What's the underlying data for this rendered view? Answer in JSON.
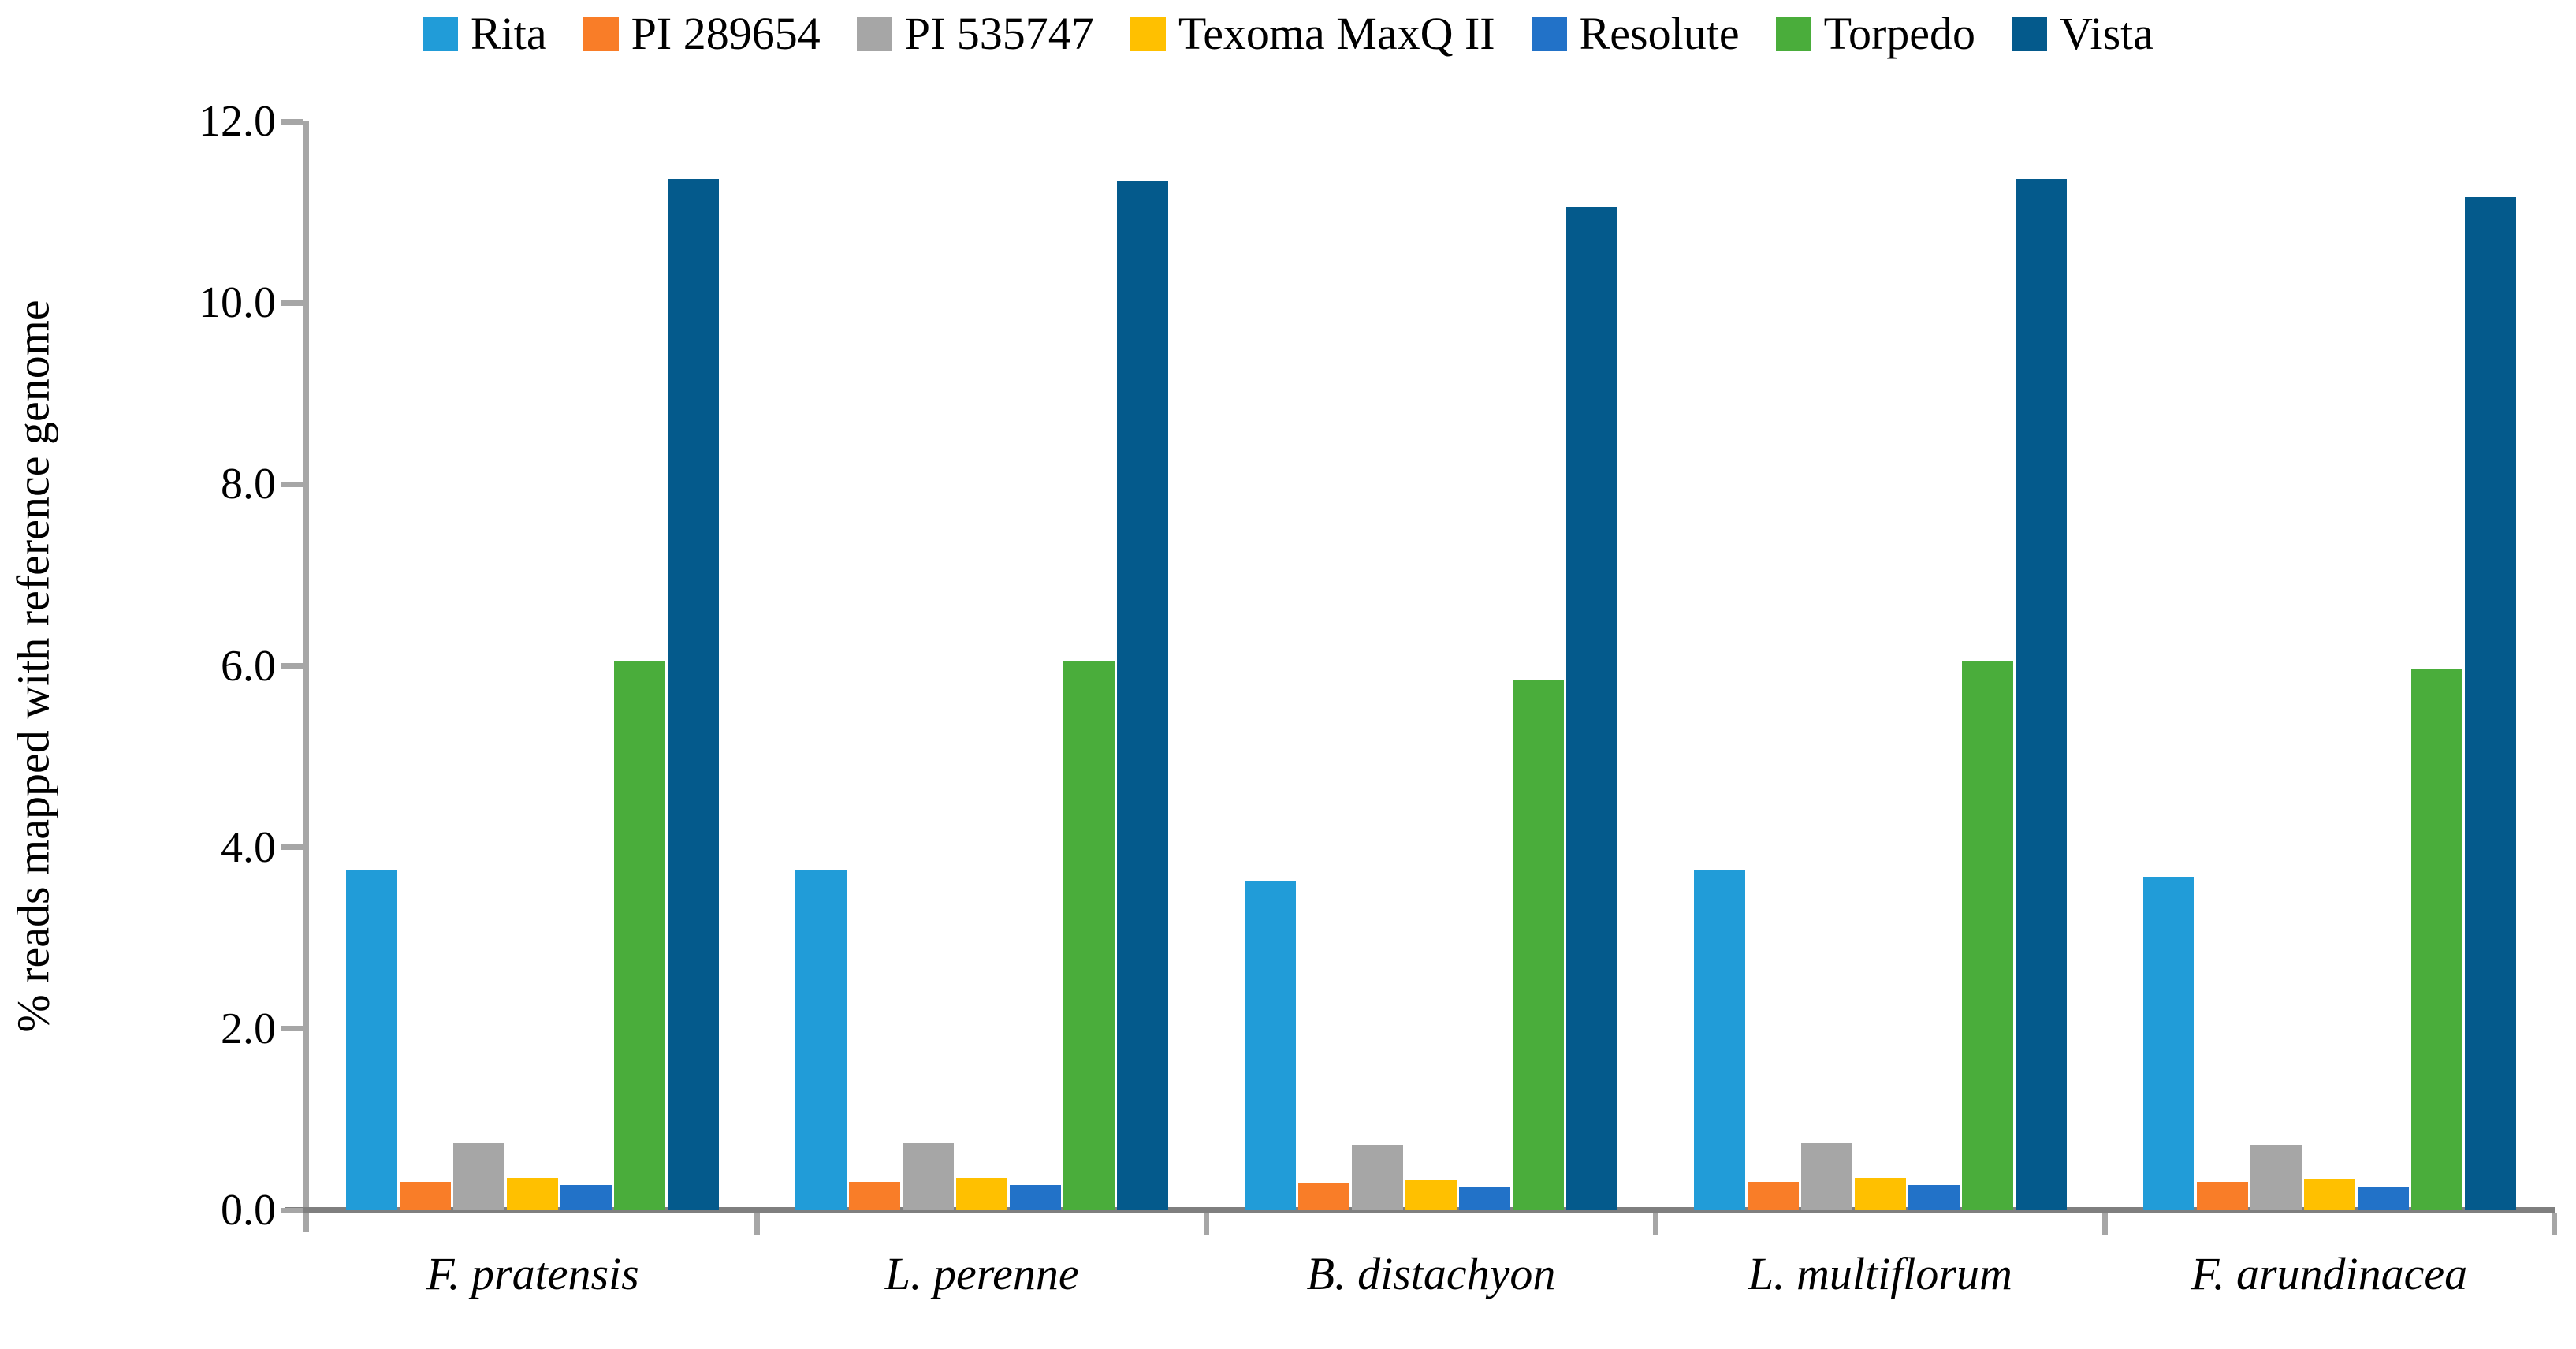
{
  "chart_data": {
    "type": "bar",
    "title": "",
    "xlabel": "",
    "ylabel": "% reads mapped with reference genome",
    "ylim": [
      0,
      12
    ],
    "ytick_step": 2,
    "ytick_labels": [
      "0.0",
      "2.0",
      "4.0",
      "6.0",
      "8.0",
      "10.0",
      "12.0"
    ],
    "grid": false,
    "legend_position": "top",
    "axis_color": "#A6A6A6",
    "baseline_color": "#7F7F7F",
    "categories": [
      "F. pratensis",
      "L. perenne",
      "B. distachyon",
      "L. multiflorum",
      "F. arundinacea"
    ],
    "series": [
      {
        "name": "Rita",
        "color": "#219CD8",
        "values": [
          3.75,
          3.75,
          3.62,
          3.75,
          3.68
        ]
      },
      {
        "name": "PI 289654",
        "color": "#F97D28",
        "values": [
          0.31,
          0.31,
          0.3,
          0.31,
          0.31
        ]
      },
      {
        "name": "PI 535747",
        "color": "#A6A6A6",
        "values": [
          0.74,
          0.74,
          0.72,
          0.74,
          0.72
        ]
      },
      {
        "name": "Texoma MaxQ II",
        "color": "#FFC000",
        "values": [
          0.36,
          0.36,
          0.33,
          0.36,
          0.34
        ]
      },
      {
        "name": "Resolute",
        "color": "#2272C8",
        "values": [
          0.28,
          0.28,
          0.26,
          0.28,
          0.26
        ]
      },
      {
        "name": "Torpedo",
        "color": "#4AAD3B",
        "values": [
          6.06,
          6.05,
          5.85,
          6.06,
          5.96
        ]
      },
      {
        "name": "Vista",
        "color": "#045A8C",
        "values": [
          11.37,
          11.35,
          11.06,
          11.37,
          11.17
        ]
      }
    ]
  }
}
